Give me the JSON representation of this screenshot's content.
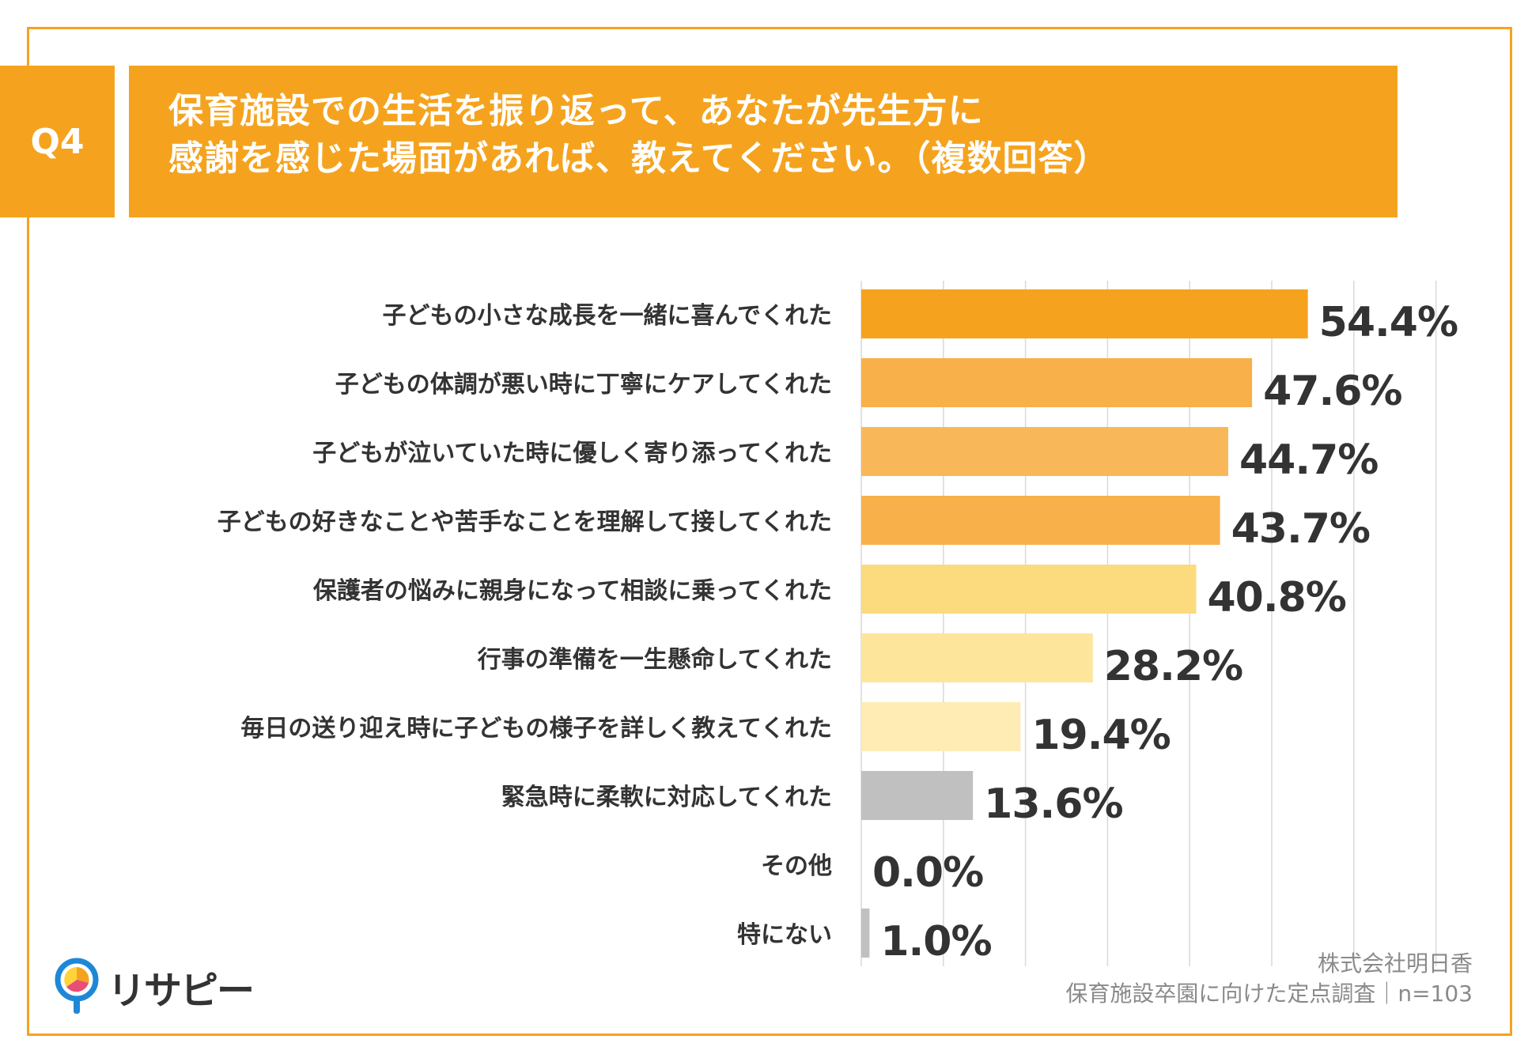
{
  "header": {
    "q_label": "Q4",
    "title_line1": "保育施設での生活を振り返って、あなたが先生方に",
    "title_line2": "感謝を感じた場面があれば、教えてください。（複数回答）"
  },
  "chart_data": {
    "type": "bar",
    "orientation": "horizontal",
    "categories": [
      "子どもの小さな成長を一緒に喜んでくれた",
      "子どもの体調が悪い時に丁寧にケアしてくれた",
      "子どもが泣いていた時に優しく寄り添ってくれた",
      "子どもの好きなことや苦手なことを理解して接してくれた",
      "保護者の悩みに親身になって相談に乗ってくれた",
      "行事の準備を一生懸命してくれた",
      "毎日の送り迎え時に子どもの様子を詳しく教えてくれた",
      "緊急時に柔軟に対応してくれた",
      "その他",
      "特にない"
    ],
    "values": [
      54.4,
      47.6,
      44.7,
      43.7,
      40.8,
      28.2,
      19.4,
      13.6,
      0.0,
      1.0
    ],
    "value_labels": [
      "54.4%",
      "47.6%",
      "44.7%",
      "43.7%",
      "40.8%",
      "28.2%",
      "19.4%",
      "13.6%",
      "0.0%",
      "1.0%"
    ],
    "colors": [
      "#F5A31E",
      "#F8B04A",
      "#F8B859",
      "#F8B04A",
      "#FCDA7E",
      "#FDE59C",
      "#FEECB4",
      "#C0C0C0",
      "#C0C0C0",
      "#C0C0C0"
    ],
    "xlim": [
      0,
      70
    ],
    "grid_step": 10,
    "grid": true
  },
  "brand": {
    "name": "リサピー"
  },
  "credit": {
    "line1": "株式会社明日香",
    "line2": "保育施設卒園に向けた定点調査｜n=103"
  }
}
